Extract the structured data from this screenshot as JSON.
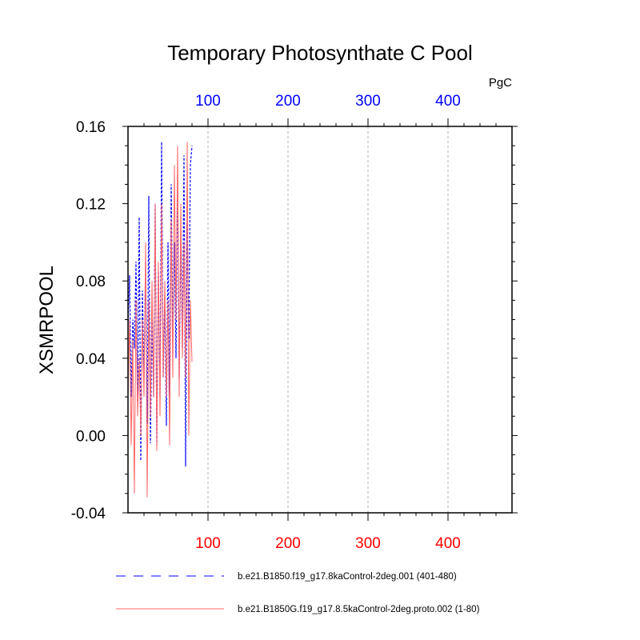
{
  "chart_data": {
    "type": "line",
    "title": "Temporary Photosynthate C Pool",
    "units": "PgC",
    "ylabel": "XSMRPOOL",
    "xlim": [
      0,
      480
    ],
    "ylim": [
      -0.04,
      0.16
    ],
    "yticks": [
      "-0.04",
      "0.00",
      "0.04",
      "0.08",
      "0.12",
      "0.16"
    ],
    "ytick_values": [
      -0.04,
      0.0,
      0.04,
      0.08,
      0.12,
      0.16
    ],
    "xticks_bottom": [
      "100",
      "200",
      "300",
      "400"
    ],
    "xticks_top": [
      "100",
      "200",
      "300",
      "400"
    ],
    "xtick_values": [
      100,
      200,
      300,
      400
    ],
    "grid_x": true,
    "bottom_axis_color": "#ff0000",
    "top_axis_color": "#0000ff",
    "legend_placement": "bottom",
    "series": [
      {
        "name": "b.e21.B1850.f19_g17.8kaControl-2deg.001 (401-480)",
        "color": "#0000ff",
        "dash": "dashed",
        "x": [
          0,
          2,
          4,
          6,
          8,
          10,
          12,
          14,
          16,
          18,
          20,
          22,
          24,
          26,
          28,
          30,
          32,
          34,
          36,
          38,
          40,
          42,
          44,
          46,
          48,
          50,
          52,
          54,
          56,
          58,
          60,
          62,
          64,
          66,
          68,
          70,
          72,
          74,
          76,
          78,
          80
        ],
        "values": [
          0.055,
          0.083,
          0.02,
          0.06,
          0.045,
          0.09,
          0.018,
          0.113,
          -0.013,
          0.075,
          0.03,
          0.09,
          0.006,
          0.124,
          -0.004,
          0.06,
          0.02,
          0.12,
          -0.005,
          0.085,
          0.02,
          0.152,
          0.03,
          0.07,
          0.005,
          0.1,
          0.02,
          0.13,
          0.05,
          0.1,
          0.04,
          0.135,
          0.03,
          0.1,
          0.045,
          0.145,
          -0.016,
          0.11,
          0.05,
          0.14,
          0.15
        ]
      },
      {
        "name": "b.e21.B1850G.f19_g17.8.5kaControl-2deg.proto.002 (1-80)",
        "color": "#ff6666",
        "dash": "solid",
        "x": [
          0,
          2,
          4,
          6,
          8,
          10,
          12,
          14,
          16,
          18,
          20,
          22,
          24,
          26,
          28,
          30,
          32,
          34,
          36,
          38,
          40,
          42,
          44,
          46,
          48,
          50,
          52,
          54,
          56,
          58,
          60,
          62,
          64,
          66,
          68,
          70,
          72,
          74,
          76,
          78,
          80
        ],
        "values": [
          0.02,
          0.06,
          -0.005,
          0.05,
          -0.03,
          0.07,
          0.01,
          0.04,
          0.0,
          0.06,
          0.02,
          0.1,
          -0.032,
          0.07,
          0.01,
          0.08,
          0.02,
          0.12,
          -0.008,
          0.09,
          0.01,
          0.12,
          0.03,
          0.08,
          0.02,
          0.07,
          -0.005,
          0.112,
          0.03,
          0.14,
          0.06,
          0.15,
          0.02,
          0.12,
          0.04,
          0.1,
          0.03,
          0.152,
          0.0,
          0.07,
          0.038
        ]
      }
    ]
  }
}
